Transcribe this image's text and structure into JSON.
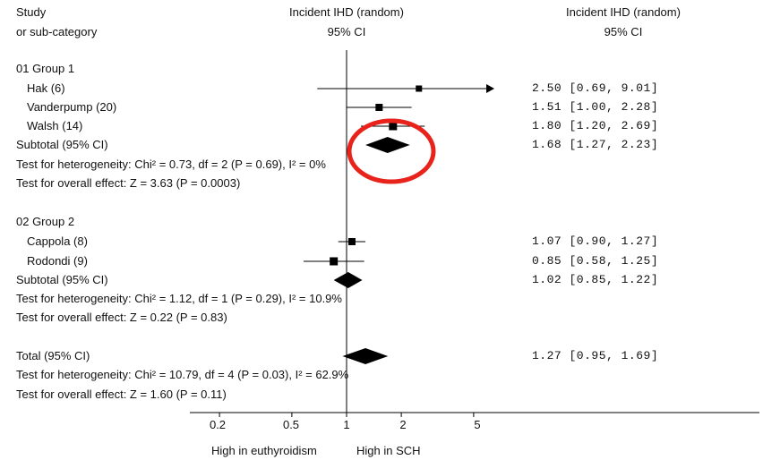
{
  "chart_data": {
    "type": "forest",
    "header": {
      "col1_line1": "Study",
      "col1_line2": "or sub-category",
      "col2_line1": "Incident IHD (random)",
      "col2_line2": "95% CI",
      "col3_line1": "Incident IHD (random)",
      "col3_line2": "95% CI"
    },
    "x_scale": "log",
    "xlim": [
      0.13,
      6.5
    ],
    "null_value": 1,
    "ticks": [
      0.2,
      0.5,
      1,
      2,
      5
    ],
    "tick_labels": [
      "0.2",
      "0.5",
      "1",
      "2",
      "5"
    ],
    "axis_left_label": "High in euthyroidism",
    "axis_right_label": "High in SCH",
    "groups": [
      {
        "label": "01 Group 1",
        "studies": [
          {
            "name": "Hak (6)",
            "est": 2.5,
            "lo": 0.69,
            "hi": 9.01,
            "ci_text": "2.50 [0.69, 9.01]",
            "arrow_right": true
          },
          {
            "name": "Vanderpump (20)",
            "est": 1.51,
            "lo": 1.0,
            "hi": 2.28,
            "ci_text": "1.51 [1.00, 2.28]"
          },
          {
            "name": "Walsh (14)",
            "est": 1.8,
            "lo": 1.2,
            "hi": 2.69,
            "ci_text": "1.80 [1.20, 2.69]"
          }
        ],
        "subtotal": {
          "label": "Subtotal (95% CI)",
          "est": 1.68,
          "lo": 1.27,
          "hi": 2.23,
          "ci_text": "1.68 [1.27, 2.23]"
        },
        "heterogeneity": "Test for heterogeneity: Chi² = 0.73, df = 2 (P = 0.69), I² = 0%",
        "overall_effect": "Test for overall effect: Z = 3.63 (P = 0.0003)"
      },
      {
        "label": "02 Group 2",
        "studies": [
          {
            "name": "Cappola (8)",
            "est": 1.07,
            "lo": 0.9,
            "hi": 1.27,
            "ci_text": "1.07 [0.90, 1.27]"
          },
          {
            "name": "Rodondi (9)",
            "est": 0.85,
            "lo": 0.58,
            "hi": 1.25,
            "ci_text": "0.85 [0.58, 1.25]"
          }
        ],
        "subtotal": {
          "label": "Subtotal (95% CI)",
          "est": 1.02,
          "lo": 0.85,
          "hi": 1.22,
          "ci_text": "1.02 [0.85, 1.22]"
        },
        "heterogeneity": "Test for heterogeneity: Chi² = 1.12, df = 1 (P = 0.29), I² = 10.9%",
        "overall_effect": "Test for overall effect: Z = 0.22 (P = 0.83)"
      }
    ],
    "total": {
      "label": "Total (95% CI)",
      "est": 1.27,
      "lo": 0.95,
      "hi": 1.69,
      "ci_text": "1.27 [0.95, 1.69]",
      "heterogeneity": "Test for heterogeneity: Chi² = 10.79, df = 4 (P = 0.03), I² = 62.9%",
      "overall_effect": "Test for overall effect: Z = 1.60 (P = 0.11)"
    },
    "annotation": {
      "shape": "ellipse",
      "color": "#e8231b",
      "target": "01 Group 1 subtotal"
    }
  }
}
